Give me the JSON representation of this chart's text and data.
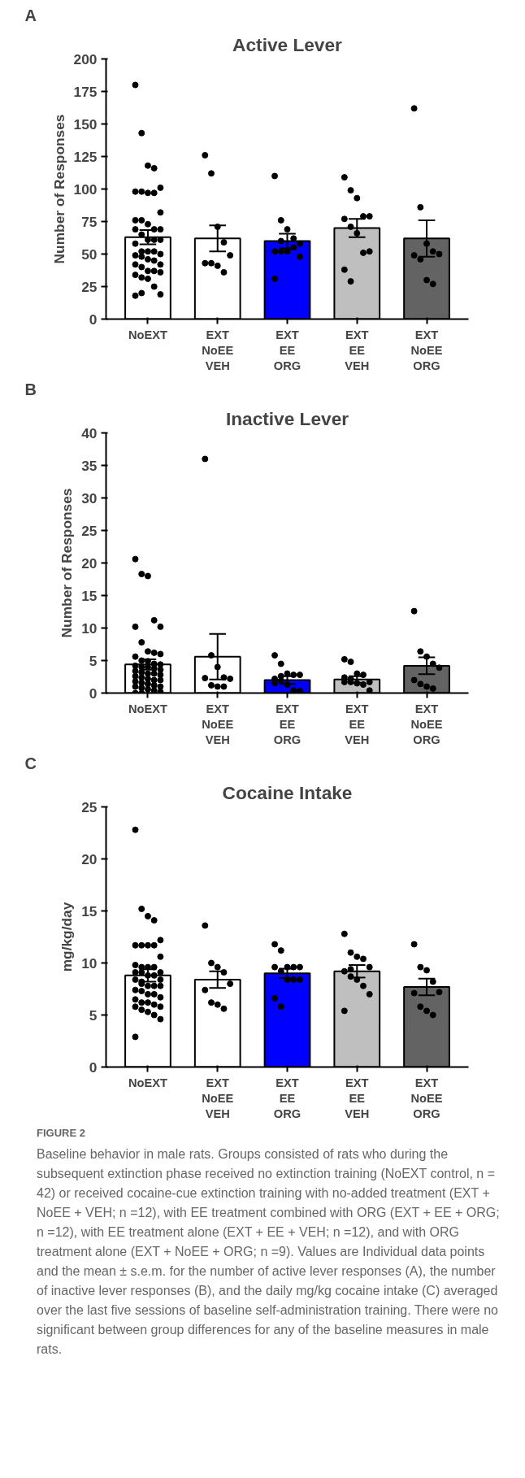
{
  "chart_data": [
    {
      "type": "bar",
      "title": "Active Lever",
      "ylabel": "Number of Responses",
      "annotations": [
        "A"
      ],
      "categories": [
        "NoEXT",
        "EXT\nNoEE\nVEH",
        "EXT\nEE\nORG",
        "EXT\nEE\nVEH",
        "EXT\nNoEE\nORG"
      ],
      "ylim": [
        0,
        200
      ],
      "yticks": [
        0,
        25,
        50,
        75,
        100,
        125,
        150,
        175,
        200
      ],
      "grid": false,
      "series": [
        {
          "colors": [
            "#ffffff",
            "#ffffff",
            "#0000ff",
            "#bfbfbf",
            "#636363"
          ],
          "values": [
            63,
            62,
            60,
            70,
            62
          ],
          "errors": [
            5.5,
            10,
            5.7,
            7,
            14
          ]
        },
        {
          "type": "scatter",
          "color": "#000000",
          "x": [
            "NoEXT",
            "NoEXT",
            "NoEXT",
            "NoEXT",
            "NoEXT",
            "NoEXT",
            "NoEXT",
            "NoEXT",
            "NoEXT",
            "NoEXT",
            "NoEXT",
            "NoEXT",
            "NoEXT",
            "NoEXT",
            "NoEXT",
            "NoEXT",
            "NoEXT",
            "NoEXT",
            "NoEXT",
            "NoEXT",
            "NoEXT",
            "NoEXT",
            "NoEXT",
            "NoEXT",
            "NoEXT",
            "NoEXT",
            "NoEXT",
            "NoEXT",
            "NoEXT",
            "NoEXT",
            "NoEXT",
            "NoEXT",
            "NoEXT",
            "NoEXT",
            "NoEXT",
            "NoEXT",
            "NoEXT",
            "NoEXT",
            "NoEXT",
            "NoEXT",
            "NoEXT",
            "NoEXT",
            "EXT\nNoEE\nVEH",
            "EXT\nNoEE\nVEH",
            "EXT\nNoEE\nVEH",
            "EXT\nNoEE\nVEH",
            "EXT\nNoEE\nVEH",
            "EXT\nNoEE\nVEH",
            "EXT\nNoEE\nVEH",
            "EXT\nNoEE\nVEH",
            "EXT\nNoEE\nVEH",
            "EXT\nEE\nORG",
            "EXT\nEE\nORG",
            "EXT\nEE\nORG",
            "EXT\nEE\nORG",
            "EXT\nEE\nORG",
            "EXT\nEE\nORG",
            "EXT\nEE\nORG",
            "EXT\nEE\nORG",
            "EXT\nEE\nORG",
            "EXT\nEE\nORG",
            "EXT\nEE\nORG",
            "EXT\nEE\nORG",
            "EXT\nEE\nVEH",
            "EXT\nEE\nVEH",
            "EXT\nEE\nVEH",
            "EXT\nEE\nVEH",
            "EXT\nEE\nVEH",
            "EXT\nEE\nVEH",
            "EXT\nEE\nVEH",
            "EXT\nEE\nVEH",
            "EXT\nEE\nVEH",
            "EXT\nEE\nVEH",
            "EXT\nEE\nVEH",
            "EXT\nEE\nVEH",
            "EXT\nNoEE\nORG",
            "EXT\nNoEE\nORG",
            "EXT\nNoEE\nORG",
            "EXT\nNoEE\nORG",
            "EXT\nNoEE\nORG",
            "EXT\nNoEE\nORG",
            "EXT\nNoEE\nORG",
            "EXT\nNoEE\nORG",
            "EXT\nNoEE\nORG"
          ],
          "values": [
            180,
            143,
            118,
            116,
            101,
            98,
            98,
            97,
            97,
            82,
            76,
            76,
            73,
            69,
            69,
            69,
            65,
            61,
            61,
            61,
            58,
            52,
            52,
            52,
            50,
            49,
            48,
            46,
            45,
            42,
            42,
            40,
            37,
            37,
            36,
            34,
            32,
            31,
            25,
            19,
            18,
            20,
            126,
            112,
            71,
            59,
            49,
            43,
            43,
            41,
            36,
            110,
            76,
            69,
            62,
            58,
            52,
            52,
            52,
            55,
            48,
            31,
            60,
            109,
            99,
            93,
            79,
            79,
            77,
            71,
            66,
            51,
            52,
            38,
            29,
            162,
            86,
            58,
            52,
            50,
            49,
            46,
            30,
            27
          ]
        }
      ]
    },
    {
      "type": "bar",
      "title": "Inactive Lever",
      "ylabel": "Number of Responses",
      "annotations": [
        "B"
      ],
      "categories": [
        "NoEXT",
        "EXT\nNoEE\nVEH",
        "EXT\nEE\nORG",
        "EXT\nEE\nVEH",
        "EXT\nNoEE\nORG"
      ],
      "ylim": [
        0,
        40
      ],
      "yticks": [
        0,
        5,
        10,
        15,
        20,
        25,
        30,
        35,
        40
      ],
      "grid": false,
      "series": [
        {
          "colors": [
            "#ffffff",
            "#ffffff",
            "#0000ff",
            "#bfbfbf",
            "#636363"
          ],
          "values": [
            4.4,
            5.6,
            2.0,
            2.1,
            4.2
          ],
          "errors": [
            0.8,
            3.5,
            0.6,
            0.5,
            1.3
          ]
        },
        {
          "type": "scatter",
          "color": "#000000",
          "x": [
            "NoEXT",
            "NoEXT",
            "NoEXT",
            "NoEXT",
            "NoEXT",
            "NoEXT",
            "NoEXT",
            "NoEXT",
            "NoEXT",
            "NoEXT",
            "NoEXT",
            "NoEXT",
            "NoEXT",
            "NoEXT",
            "NoEXT",
            "NoEXT",
            "NoEXT",
            "NoEXT",
            "NoEXT",
            "NoEXT",
            "NoEXT",
            "NoEXT",
            "NoEXT",
            "NoEXT",
            "NoEXT",
            "NoEXT",
            "NoEXT",
            "NoEXT",
            "NoEXT",
            "NoEXT",
            "NoEXT",
            "NoEXT",
            "NoEXT",
            "NoEXT",
            "NoEXT",
            "NoEXT",
            "NoEXT",
            "NoEXT",
            "NoEXT",
            "NoEXT",
            "NoEXT",
            "NoEXT",
            "EXT\nNoEE\nVEH",
            "EXT\nNoEE\nVEH",
            "EXT\nNoEE\nVEH",
            "EXT\nNoEE\nVEH",
            "EXT\nNoEE\nVEH",
            "EXT\nNoEE\nVEH",
            "EXT\nNoEE\nVEH",
            "EXT\nNoEE\nVEH",
            "EXT\nNoEE\nVEH",
            "EXT\nEE\nORG",
            "EXT\nEE\nORG",
            "EXT\nEE\nORG",
            "EXT\nEE\nORG",
            "EXT\nEE\nORG",
            "EXT\nEE\nORG",
            "EXT\nEE\nORG",
            "EXT\nEE\nORG",
            "EXT\nEE\nORG",
            "EXT\nEE\nORG",
            "EXT\nEE\nORG",
            "EXT\nEE\nORG",
            "EXT\nEE\nVEH",
            "EXT\nEE\nVEH",
            "EXT\nEE\nVEH",
            "EXT\nEE\nVEH",
            "EXT\nEE\nVEH",
            "EXT\nEE\nVEH",
            "EXT\nEE\nVEH",
            "EXT\nEE\nVEH",
            "EXT\nEE\nVEH",
            "EXT\nEE\nVEH",
            "EXT\nEE\nVEH",
            "EXT\nEE\nVEH",
            "EXT\nNoEE\nORG",
            "EXT\nNoEE\nORG",
            "EXT\nNoEE\nORG",
            "EXT\nNoEE\nORG",
            "EXT\nNoEE\nORG",
            "EXT\nNoEE\nORG",
            "EXT\nNoEE\nORG",
            "EXT\nNoEE\nORG",
            "EXT\nNoEE\nORG"
          ],
          "values": [
            20.6,
            18.3,
            18,
            11.2,
            10.2,
            10.2,
            7.8,
            6.4,
            6.2,
            6,
            5.6,
            5,
            4.9,
            4.5,
            4.4,
            4.2,
            4,
            4,
            3.8,
            3.6,
            3.4,
            3.2,
            3,
            3,
            2.8,
            2.6,
            2.4,
            2.2,
            2,
            2,
            1.8,
            1.6,
            1.4,
            1.2,
            1,
            1,
            0.8,
            0.6,
            0.4,
            0.2,
            0,
            0,
            36,
            5.8,
            4,
            2.4,
            2.2,
            2.3,
            1.2,
            1,
            1,
            5.8,
            4.5,
            3,
            2.8,
            2.8,
            2.2,
            1.9,
            1.3,
            0.4,
            0.3,
            1.5,
            2.6,
            5.2,
            4.8,
            3,
            2.8,
            1.7,
            1.7,
            1.7,
            1.5,
            1.3,
            0.4,
            2.4,
            2.2,
            12.6,
            6.4,
            5.6,
            4.5,
            3.9,
            2,
            1.4,
            1,
            0.7
          ]
        }
      ]
    },
    {
      "type": "bar",
      "title": "Cocaine Intake",
      "ylabel": "mg/kg/day",
      "annotations": [
        "C",
        "FIGURE 2",
        "Baseline behavior in male rats. Groups consisted of rats who during the subsequent extinction phase received no extinction training (NoEXT control, n = 42) or received cocaine-cue extinction training with no-added treatment (EXT + NoEE + VEH; n =12), with EE treatment combined with ORG (EXT + EE + ORG; n =12), with EE treatment alone (EXT + EE + VEH; n =12), and with ORG treatment alone (EXT + NoEE + ORG; n =9). Values are Individual data points and the mean ± s.e.m. for the number of active lever responses (A), the number of inactive lever responses (B), and the daily mg/kg cocaine intake (C) averaged over the last five sessions of baseline self-administration training. There were no significant between group differences for any of the baseline measures in male rats."
      ],
      "categories": [
        "NoEXT",
        "EXT\nNoEE\nVEH",
        "EXT\nEE\nORG",
        "EXT\nEE\nVEH",
        "EXT\nNoEE\nORG"
      ],
      "ylim": [
        0,
        25
      ],
      "yticks": [
        0,
        5,
        10,
        15,
        20,
        25
      ],
      "grid": false,
      "series": [
        {
          "colors": [
            "#ffffff",
            "#ffffff",
            "#0000ff",
            "#bfbfbf",
            "#636363"
          ],
          "values": [
            8.8,
            8.4,
            9.0,
            9.2,
            7.7
          ],
          "errors": [
            0.6,
            0.8,
            0.45,
            0.6,
            0.8
          ]
        },
        {
          "type": "scatter",
          "color": "#000000",
          "x": [
            "NoEXT",
            "NoEXT",
            "NoEXT",
            "NoEXT",
            "NoEXT",
            "NoEXT",
            "NoEXT",
            "NoEXT",
            "NoEXT",
            "NoEXT",
            "NoEXT",
            "NoEXT",
            "NoEXT",
            "NoEXT",
            "NoEXT",
            "NoEXT",
            "NoEXT",
            "NoEXT",
            "NoEXT",
            "NoEXT",
            "NoEXT",
            "NoEXT",
            "NoEXT",
            "NoEXT",
            "NoEXT",
            "NoEXT",
            "NoEXT",
            "NoEXT",
            "NoEXT",
            "NoEXT",
            "NoEXT",
            "NoEXT",
            "NoEXT",
            "NoEXT",
            "NoEXT",
            "NoEXT",
            "NoEXT",
            "NoEXT",
            "NoEXT",
            "NoEXT",
            "NoEXT",
            "NoEXT",
            "EXT\nNoEE\nVEH",
            "EXT\nNoEE\nVEH",
            "EXT\nNoEE\nVEH",
            "EXT\nNoEE\nVEH",
            "EXT\nNoEE\nVEH",
            "EXT\nNoEE\nVEH",
            "EXT\nNoEE\nVEH",
            "EXT\nNoEE\nVEH",
            "EXT\nNoEE\nVEH",
            "EXT\nEE\nORG",
            "EXT\nEE\nORG",
            "EXT\nEE\nORG",
            "EXT\nEE\nORG",
            "EXT\nEE\nORG",
            "EXT\nEE\nORG",
            "EXT\nEE\nORG",
            "EXT\nEE\nORG",
            "EXT\nEE\nORG",
            "EXT\nEE\nORG",
            "EXT\nEE\nORG",
            "EXT\nEE\nORG",
            "EXT\nEE\nVEH",
            "EXT\nEE\nVEH",
            "EXT\nEE\nVEH",
            "EXT\nEE\nVEH",
            "EXT\nEE\nVEH",
            "EXT\nEE\nVEH",
            "EXT\nEE\nVEH",
            "EXT\nEE\nVEH",
            "EXT\nEE\nVEH",
            "EXT\nEE\nVEH",
            "EXT\nEE\nVEH",
            "EXT\nEE\nVEH",
            "EXT\nNoEE\nORG",
            "EXT\nNoEE\nORG",
            "EXT\nNoEE\nORG",
            "EXT\nNoEE\nORG",
            "EXT\nNoEE\nORG",
            "EXT\nNoEE\nORG",
            "EXT\nNoEE\nORG",
            "EXT\nNoEE\nORG",
            "EXT\nNoEE\nORG"
          ],
          "values": [
            22.8,
            15.2,
            14.5,
            14.1,
            12.2,
            11.7,
            11.7,
            11.7,
            11.7,
            10.6,
            9.8,
            9.6,
            9.6,
            9.6,
            9.1,
            9.1,
            9.1,
            8.8,
            8.8,
            8.4,
            8.4,
            8.2,
            7.8,
            7.8,
            7.8,
            7.4,
            7.3,
            7,
            7,
            6.7,
            6.5,
            6.2,
            6.2,
            6,
            5.8,
            5.8,
            5.5,
            5.3,
            5,
            4.6,
            2.9,
            8,
            13.6,
            10,
            9.6,
            9.1,
            8,
            7.4,
            6.2,
            6,
            5.6,
            11.8,
            11.2,
            9.6,
            9.6,
            9.6,
            9.6,
            9.2,
            8.4,
            8.4,
            8.4,
            6.6,
            5.8,
            12.8,
            11,
            10.6,
            10.4,
            9.6,
            9.2,
            8.7,
            8.4,
            7.8,
            7,
            5.4,
            9.4,
            11.8,
            9.6,
            9.3,
            8.2,
            7.2,
            7.1,
            5.8,
            5.4,
            5
          ]
        }
      ]
    }
  ]
}
